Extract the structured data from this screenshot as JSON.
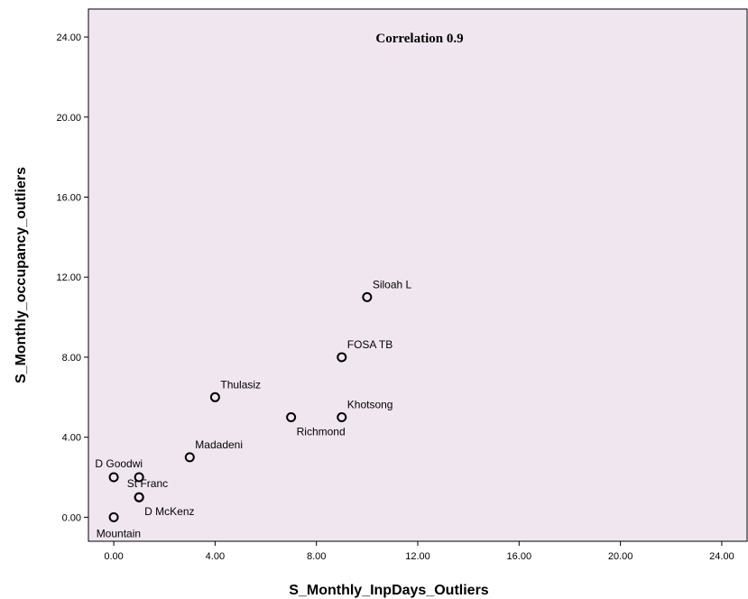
{
  "chart_data": {
    "type": "scatter",
    "title": "",
    "annotation": "Correlation 0.9",
    "xlabel": "S_Monthly_InpDays_Outliers",
    "ylabel": "S_Monthly_occupancy_outliers",
    "xlim": [
      -1,
      25
    ],
    "ylim": [
      -1.2,
      25.4
    ],
    "xticks": [
      "0.00",
      "4.00",
      "8.00",
      "12.00",
      "16.00",
      "20.00",
      "24.00"
    ],
    "yticks": [
      "0.00",
      "4.00",
      "8.00",
      "12.00",
      "16.00",
      "20.00",
      "24.00"
    ],
    "grid": false,
    "plot_background": "#f0e6f0",
    "marker_color": "#000000",
    "points": [
      {
        "label": "Siloah L",
        "x": 10,
        "y": 11,
        "label_pos": "upper-right"
      },
      {
        "label": "FOSA TB",
        "x": 9,
        "y": 8,
        "label_pos": "upper-right"
      },
      {
        "label": "Thulasiz",
        "x": 4,
        "y": 6,
        "label_pos": "upper-right"
      },
      {
        "label": "Khotsong",
        "x": 9,
        "y": 5,
        "label_pos": "upper-right"
      },
      {
        "label": "Richmond",
        "x": 7,
        "y": 5,
        "label_pos": "lower-right"
      },
      {
        "label": "Madadeni",
        "x": 3,
        "y": 3,
        "label_pos": "upper-right"
      },
      {
        "label": "D Goodwi",
        "x": 0,
        "y": 2,
        "label_pos": "upper-left"
      },
      {
        "label": "",
        "x": 1,
        "y": 2,
        "label_pos": "none"
      },
      {
        "label": "St Franc",
        "x": 1,
        "y": 1,
        "label_pos": "upper-left"
      },
      {
        "label": "D McKenz",
        "x": 1,
        "y": 1,
        "label_pos": "lower-right"
      },
      {
        "label": "Mountain",
        "x": 0,
        "y": 0,
        "label_pos": "lower-left"
      }
    ]
  }
}
